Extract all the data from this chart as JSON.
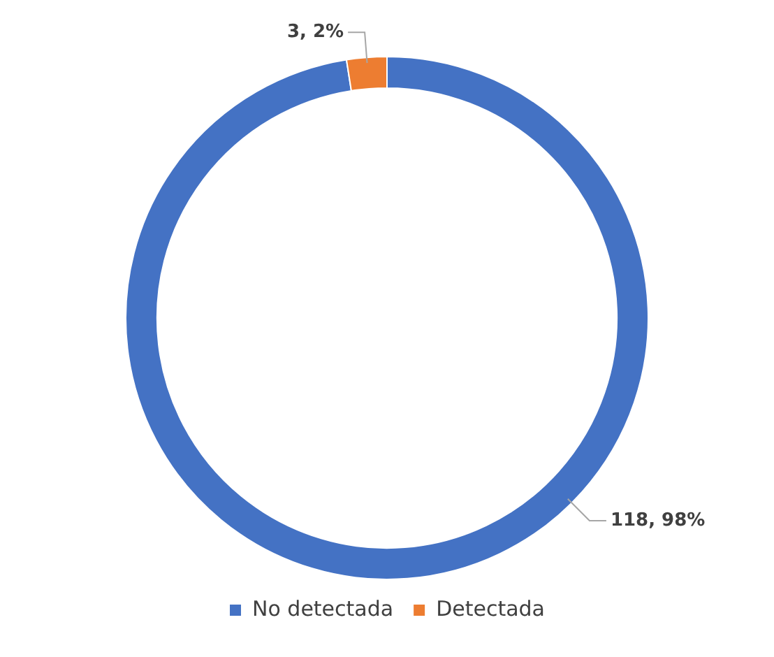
{
  "chart_data": {
    "type": "donut",
    "categories": [
      "No detectada",
      "Detectada"
    ],
    "values": [
      118,
      3
    ],
    "colors": [
      "#4472c4",
      "#ed7d31"
    ],
    "value_labels": [
      "118, 98%",
      "3, 2%"
    ],
    "legend": "bottom"
  }
}
